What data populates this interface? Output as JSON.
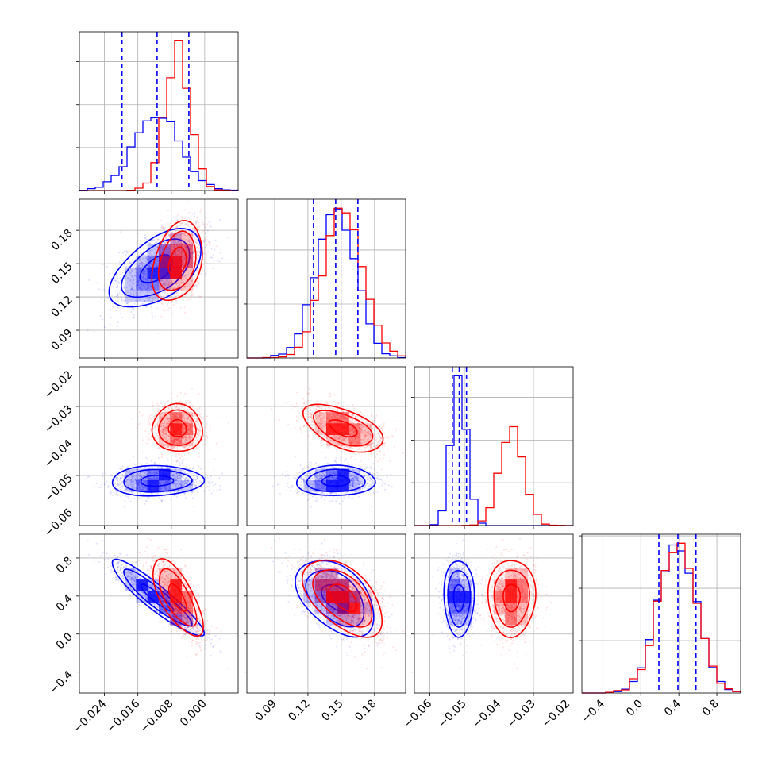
{
  "chart_data": {
    "type": "corner",
    "series": [
      {
        "name": "",
        "color": "#0000ff"
      },
      {
        "name": "",
        "color": "#ff0000"
      }
    ],
    "parameters": [
      {
        "range": [
          -0.03,
          0.008
        ],
        "ticks": [
          -0.024,
          -0.016,
          -0.008,
          0.0
        ],
        "tick_labels": [
          "−0.024",
          "−0.016",
          "−0.008",
          "0.000"
        ]
      },
      {
        "range": [
          0.065,
          0.208
        ],
        "ticks": [
          0.09,
          0.12,
          0.15,
          0.18
        ],
        "tick_labels": [
          "0.09",
          "0.12",
          "0.15",
          "0.18"
        ]
      },
      {
        "range": [
          -0.0645,
          -0.0185
        ],
        "ticks": [
          -0.06,
          -0.05,
          -0.04,
          -0.03,
          -0.02
        ],
        "tick_labels": [
          "−0.06",
          "−0.05",
          "−0.04",
          "−0.03",
          "−0.02"
        ]
      },
      {
        "range": [
          -0.62,
          1.05
        ],
        "ticks": [
          -0.4,
          0.0,
          0.4,
          0.8
        ],
        "tick_labels": [
          "−0.4",
          "0.0",
          "0.4",
          "0.8"
        ]
      }
    ],
    "stats": {
      "blue": {
        "mean": [
          -0.0115,
          0.145,
          -0.0515,
          0.38
        ],
        "std": [
          0.0055,
          0.018,
          0.0022,
          0.2
        ],
        "corr": [
          [
            1,
            0,
            0,
            0
          ],
          [
            0.55,
            1,
            0,
            0
          ],
          [
            0.05,
            0.0,
            1,
            0
          ],
          [
            -0.92,
            -0.45,
            0.0,
            1
          ]
        ],
        "quantiles": [
          [
            -0.0198,
            -0.0114,
            -0.0038
          ],
          [
            0.125,
            0.145,
            0.165
          ],
          [
            -0.0535,
            -0.0515,
            -0.0494
          ],
          [
            0.19,
            0.39,
            0.58
          ]
        ]
      },
      "red": {
        "mean": [
          -0.0065,
          0.152,
          -0.0363,
          0.38
        ],
        "std": [
          0.003,
          0.018,
          0.0035,
          0.2
        ],
        "corr": [
          [
            1,
            0,
            0,
            0
          ],
          [
            0.3,
            1,
            0,
            0
          ],
          [
            0.0,
            -0.55,
            1,
            0
          ],
          [
            -0.7,
            -0.5,
            0.0,
            1
          ]
        ]
      }
    },
    "grid": true,
    "quantile_line_color": "#0000ff"
  }
}
